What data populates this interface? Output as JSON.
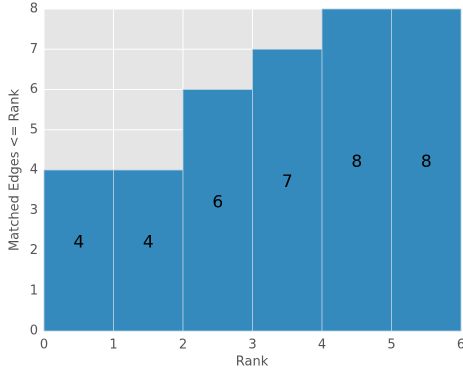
{
  "chart_data": {
    "type": "histogram",
    "bins": [
      0,
      1,
      2,
      3,
      4,
      5,
      6
    ],
    "values": [
      4,
      4,
      6,
      7,
      8,
      8
    ],
    "color": "#348abd",
    "xlabel": "Rank",
    "ylabel": "Matched Edges <= Rank",
    "xlim": [
      0,
      6
    ],
    "xticks": [
      0,
      1,
      2,
      3,
      4,
      5,
      6
    ],
    "ylim": [
      0,
      8
    ],
    "yticks": [
      0,
      1,
      2,
      3,
      4,
      5,
      6,
      7,
      8
    ],
    "grid": true
  }
}
